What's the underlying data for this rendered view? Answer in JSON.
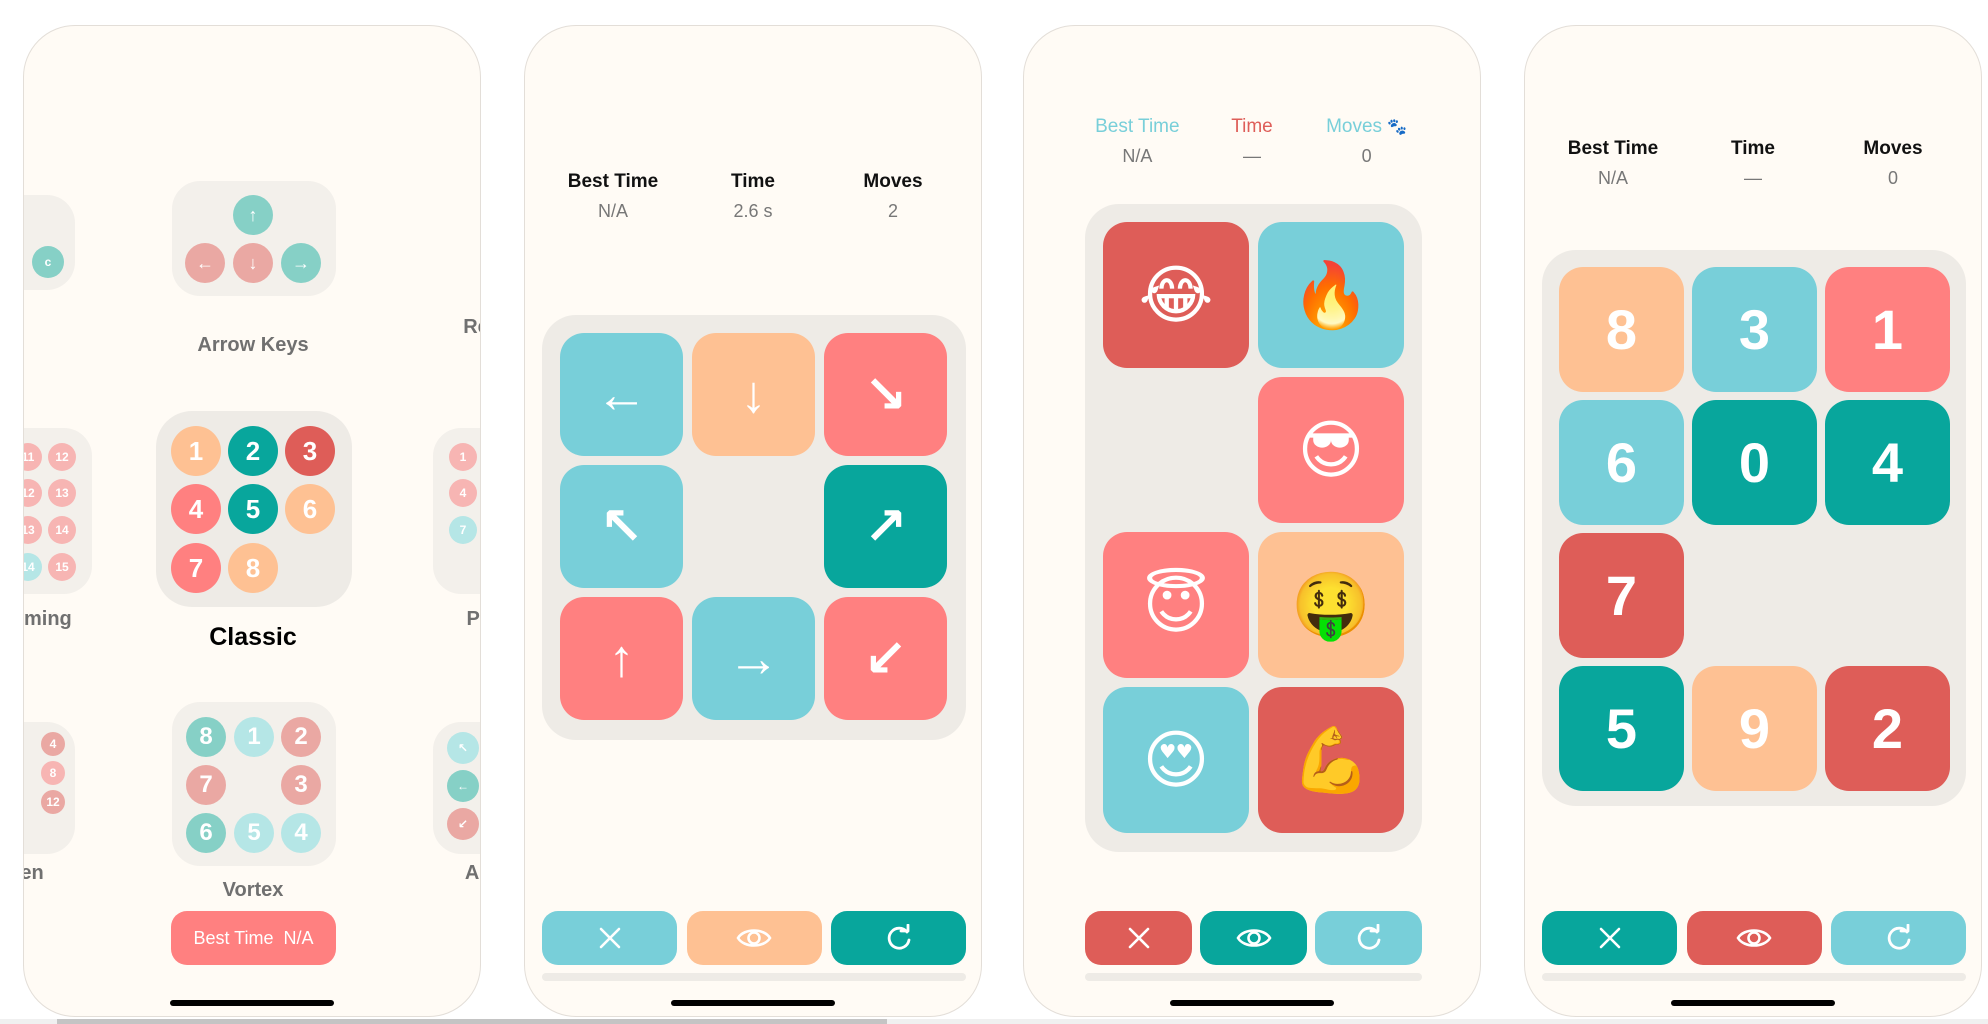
{
  "colors": {
    "blue": "#78cfd9",
    "orange": "#fec193",
    "pink": "#ff8080",
    "teal": "#08a69c",
    "red": "#de5d58",
    "bg": "#fffbf5",
    "board": "#eeebe6"
  },
  "screen1": {
    "modes": [
      {
        "name": "Arrow Keys",
        "selected": false,
        "circles": [
          {
            "t": "↑",
            "c": "#86d0c6"
          },
          {
            "t": "←",
            "c": "#eaa8a3"
          },
          {
            "t": "↓",
            "c": "#eaa8a3"
          },
          {
            "t": "→",
            "c": "#86d0c6"
          }
        ]
      },
      {
        "name": "Classic",
        "selected": true,
        "circles": [
          {
            "t": "1",
            "c": "#fec193"
          },
          {
            "t": "2",
            "c": "#08a69c"
          },
          {
            "t": "3",
            "c": "#de5d58"
          },
          {
            "t": "4",
            "c": "#ff8080"
          },
          {
            "t": "5",
            "c": "#08a69c"
          },
          {
            "t": "6",
            "c": "#fec193"
          },
          {
            "t": "7",
            "c": "#ff8080"
          },
          {
            "t": "8",
            "c": "#fec193"
          }
        ]
      },
      {
        "name": "Vortex",
        "selected": false,
        "circles": [
          {
            "t": "8",
            "c": "#86d0c6"
          },
          {
            "t": "1",
            "c": "#b5e6e6"
          },
          {
            "t": "2",
            "c": "#eaa8a3"
          },
          {
            "t": "7",
            "c": "#eaa8a3"
          },
          {
            "t": "3",
            "c": "#eaa8a3"
          },
          {
            "t": "6",
            "c": "#86d0c6"
          },
          {
            "t": "5",
            "c": "#b5e6e6"
          },
          {
            "t": "4",
            "c": "#b5e6e6"
          }
        ]
      }
    ],
    "partial_labels": [
      "rming",
      "en",
      "Re",
      "Pl",
      "Ar"
    ],
    "partial_circles": [
      {
        "t": "c",
        "c": "#86d0c6"
      },
      {
        "t": "11",
        "c": "#f7b5b3"
      },
      {
        "t": "12",
        "c": "#f7b5b3"
      },
      {
        "t": "12",
        "c": "#f7b5b3"
      },
      {
        "t": "13",
        "c": "#f7b5b3"
      },
      {
        "t": "13",
        "c": "#f7b5b3"
      },
      {
        "t": "14",
        "c": "#f7b5b3"
      },
      {
        "t": "14",
        "c": "#b5e6e6"
      },
      {
        "t": "15",
        "c": "#f7b5b3"
      },
      {
        "t": "4",
        "c": "#eaa8a3"
      },
      {
        "t": "8",
        "c": "#f7b5b3"
      },
      {
        "t": "12",
        "c": "#eaa8a3"
      },
      {
        "t": "1",
        "c": "#f7b5b3"
      },
      {
        "t": "4",
        "c": "#f7b5b3"
      },
      {
        "t": "7",
        "c": "#b5e6e6"
      },
      {
        "t": "↖",
        "c": "#b5e6e6"
      },
      {
        "t": "←",
        "c": "#86d0c6"
      },
      {
        "t": "↙",
        "c": "#eaa8a3"
      }
    ],
    "best_time_button": {
      "label": "Best Time",
      "value": "N/A"
    }
  },
  "screen2": {
    "stats": [
      {
        "label": "Best Time",
        "value": "N/A"
      },
      {
        "label": "Time",
        "value": "2.6 s"
      },
      {
        "label": "Moves",
        "value": "2"
      }
    ],
    "tiles": [
      {
        "t": "←",
        "c": "blue"
      },
      {
        "t": "↓",
        "c": "orange"
      },
      {
        "t": "↘",
        "c": "pink"
      },
      {
        "t": "↖",
        "c": "blue"
      },
      null,
      {
        "t": "↗",
        "c": "teal"
      },
      {
        "t": "↑",
        "c": "pink"
      },
      {
        "t": "→",
        "c": "blue"
      },
      {
        "t": "↙",
        "c": "pink"
      }
    ],
    "buttons": [
      {
        "icon": "close-icon",
        "c": "blue"
      },
      {
        "icon": "eye-icon",
        "c": "orange"
      },
      {
        "icon": "refresh-icon",
        "c": "teal"
      }
    ]
  },
  "screen3": {
    "stats": [
      {
        "label": "Best Time",
        "value": "N/A",
        "color": "#78cfd9"
      },
      {
        "label": "Time",
        "value": "—",
        "color": "#de5d58"
      },
      {
        "label": "Moves",
        "value": "0",
        "color": "#78cfd9",
        "badge": "🐾"
      }
    ],
    "tiles": [
      {
        "t": "😂",
        "c": "red"
      },
      {
        "t": "🔥",
        "c": "blue"
      },
      null,
      {
        "t": "😎",
        "c": "pink"
      },
      {
        "t": "😇",
        "c": "pink"
      },
      {
        "t": "🤑",
        "c": "orange"
      },
      {
        "t": "😍",
        "c": "blue"
      },
      {
        "t": "💪",
        "c": "red"
      }
    ],
    "buttons": [
      {
        "icon": "close-icon",
        "c": "red"
      },
      {
        "icon": "eye-icon",
        "c": "teal"
      },
      {
        "icon": "refresh-icon",
        "c": "blue"
      }
    ]
  },
  "screen4": {
    "stats": [
      {
        "label": "Best Time",
        "value": "N/A"
      },
      {
        "label": "Time",
        "value": "—"
      },
      {
        "label": "Moves",
        "value": "0"
      }
    ],
    "tiles": [
      {
        "t": "8",
        "c": "orange"
      },
      {
        "t": "3",
        "c": "blue"
      },
      {
        "t": "1",
        "c": "pink"
      },
      {
        "t": "6",
        "c": "blue"
      },
      {
        "t": "0",
        "c": "teal"
      },
      {
        "t": "4",
        "c": "teal"
      },
      {
        "t": "7",
        "c": "red"
      },
      null,
      null,
      {
        "t": "5",
        "c": "teal"
      },
      {
        "t": "9",
        "c": "orange"
      },
      {
        "t": "2",
        "c": "red"
      }
    ],
    "buttons": [
      {
        "icon": "close-icon",
        "c": "teal"
      },
      {
        "icon": "eye-icon",
        "c": "red"
      },
      {
        "icon": "refresh-icon",
        "c": "blue"
      }
    ]
  }
}
